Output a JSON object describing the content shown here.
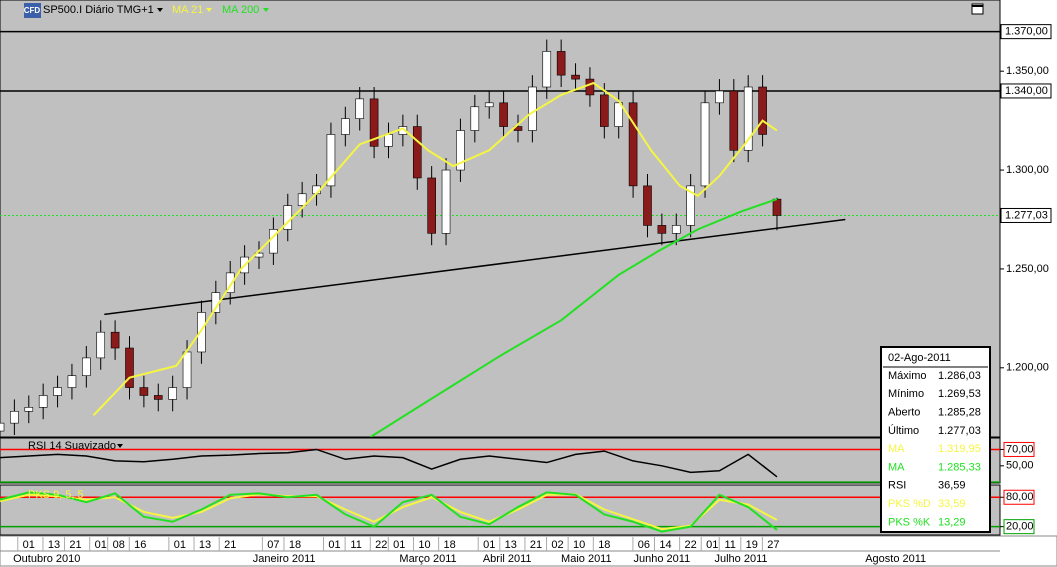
{
  "toolbar": {
    "icon": "CFD"
  },
  "chart_data": [
    {
      "type": "candlestick",
      "title": "SP500.I Diário TMG+1",
      "x": [
        0,
        4,
        8,
        12,
        16,
        20,
        24,
        28,
        32,
        36,
        40,
        44,
        48,
        52,
        56,
        60,
        64,
        68,
        72,
        76,
        80,
        84,
        88,
        92,
        96,
        100,
        104,
        108,
        112,
        116,
        120,
        124,
        128,
        132,
        136,
        140,
        144,
        148,
        152,
        156,
        160,
        164,
        168,
        172,
        176,
        180,
        184,
        188,
        192,
        196,
        200,
        204,
        208,
        212,
        216
      ],
      "open": [
        1168,
        1172,
        1178,
        1180,
        1186,
        1190,
        1196,
        1205,
        1218,
        1210,
        1190,
        1186,
        1184,
        1190,
        1208,
        1228,
        1238,
        1248,
        1256,
        1258,
        1270,
        1282,
        1288,
        1292,
        1318,
        1326,
        1336,
        1312,
        1318,
        1322,
        1296,
        1268,
        1300,
        1320,
        1332,
        1334,
        1322,
        1320,
        1342,
        1360,
        1348,
        1346,
        1338,
        1322,
        1334,
        1292,
        1272,
        1268,
        1272,
        1292,
        1334,
        1340,
        1310,
        1342,
        1285.28
      ],
      "high": [
        1178,
        1184,
        1186,
        1192,
        1196,
        1202,
        1211,
        1224,
        1224,
        1216,
        1196,
        1192,
        1196,
        1214,
        1234,
        1244,
        1254,
        1262,
        1264,
        1276,
        1288,
        1294,
        1298,
        1324,
        1332,
        1342,
        1342,
        1324,
        1328,
        1328,
        1302,
        1306,
        1326,
        1338,
        1340,
        1340,
        1328,
        1348,
        1366,
        1366,
        1354,
        1352,
        1344,
        1340,
        1340,
        1298,
        1278,
        1278,
        1298,
        1340,
        1346,
        1346,
        1348,
        1348,
        1286.03
      ],
      "low": [
        1162,
        1166,
        1172,
        1174,
        1180,
        1184,
        1190,
        1199,
        1204,
        1184,
        1180,
        1178,
        1178,
        1184,
        1202,
        1222,
        1232,
        1242,
        1250,
        1252,
        1264,
        1276,
        1282,
        1286,
        1312,
        1320,
        1306,
        1306,
        1312,
        1290,
        1262,
        1262,
        1294,
        1314,
        1326,
        1316,
        1314,
        1314,
        1336,
        1342,
        1340,
        1332,
        1316,
        1316,
        1286,
        1266,
        1262,
        1262,
        1266,
        1286,
        1328,
        1304,
        1304,
        1312,
        1269.53
      ],
      "close": [
        1172,
        1178,
        1180,
        1186,
        1190,
        1196,
        1205,
        1218,
        1210,
        1190,
        1186,
        1184,
        1190,
        1208,
        1228,
        1238,
        1248,
        1256,
        1258,
        1270,
        1282,
        1288,
        1292,
        1318,
        1326,
        1336,
        1312,
        1318,
        1322,
        1296,
        1268,
        1300,
        1320,
        1332,
        1334,
        1322,
        1320,
        1342,
        1360,
        1348,
        1346,
        1338,
        1322,
        1334,
        1292,
        1272,
        1268,
        1272,
        1292,
        1334,
        1340,
        1310,
        1342,
        1318,
        1277.03
      ],
      "up_color": "#ffffff",
      "down_color": "#8b1a1a",
      "series": [
        {
          "name": "MA 21",
          "color": "#f5f542",
          "x": [
            26,
            36,
            49,
            56,
            67,
            78,
            89,
            100,
            112,
            119,
            126,
            136,
            147,
            156,
            165,
            172,
            181,
            189,
            194,
            200,
            207,
            212,
            216
          ],
          "values": [
            1176,
            1195,
            1201,
            1219,
            1250,
            1270,
            1290,
            1313,
            1321,
            1310,
            1302,
            1310,
            1328,
            1338,
            1344,
            1335,
            1310,
            1292,
            1287,
            1297,
            1313,
            1325,
            1319.95
          ]
        },
        {
          "name": "MA 200",
          "color": "#22e022",
          "x": [
            103,
            117,
            139,
            156,
            172,
            183,
            194,
            206,
            216
          ],
          "values": [
            1165,
            1181,
            1206,
            1224,
            1247,
            1259,
            1270,
            1279,
            1285.33
          ]
        }
      ],
      "hlines": [
        {
          "value": 1370,
          "label": "1.370,00"
        },
        {
          "value": 1340,
          "label": "1.340,00"
        }
      ],
      "last_price": {
        "value": 1277.03,
        "label": "1.277,03"
      },
      "trendline": {
        "x": [
          29,
          235
        ],
        "values": [
          1227,
          1275
        ]
      },
      "ylim": [
        1165,
        1386
      ],
      "yticks": [
        {
          "value": 1200,
          "label": "1.200,00"
        },
        {
          "value": 1250,
          "label": "1.250,00"
        },
        {
          "value": 1300,
          "label": "1.300,00"
        },
        {
          "value": 1350,
          "label": "1.350,00"
        }
      ],
      "xlim": [
        0,
        278
      ],
      "xticks": [
        {
          "value": 8,
          "label": "01"
        },
        {
          "value": 15,
          "label": "13"
        },
        {
          "value": 21,
          "label": "21"
        },
        {
          "value": 28,
          "label": "01"
        },
        {
          "value": 33,
          "label": "08"
        },
        {
          "value": 39,
          "label": "16"
        },
        {
          "value": 50,
          "label": "01"
        },
        {
          "value": 57,
          "label": "13"
        },
        {
          "value": 64,
          "label": "21"
        },
        {
          "value": 76,
          "label": "07"
        },
        {
          "value": 82,
          "label": "18"
        },
        {
          "value": 93,
          "label": "01"
        },
        {
          "value": 99,
          "label": "11"
        },
        {
          "value": 106,
          "label": "22"
        },
        {
          "value": 111,
          "label": "01"
        },
        {
          "value": 118,
          "label": "10"
        },
        {
          "value": 125,
          "label": "18"
        },
        {
          "value": 136,
          "label": "01"
        },
        {
          "value": 142,
          "label": "13"
        },
        {
          "value": 149,
          "label": "21"
        },
        {
          "value": 155,
          "label": "02"
        },
        {
          "value": 161,
          "label": "10"
        },
        {
          "value": 168,
          "label": "18"
        },
        {
          "value": 179,
          "label": "06"
        },
        {
          "value": 185,
          "label": "14"
        },
        {
          "value": 192,
          "label": "22"
        },
        {
          "value": 198,
          "label": "01"
        },
        {
          "value": 203,
          "label": "11"
        },
        {
          "value": 209,
          "label": "19"
        },
        {
          "value": 215,
          "label": "27"
        }
      ],
      "month_labels": [
        {
          "value": 13,
          "label": "Outubro 2010"
        },
        {
          "value": 79,
          "label": "Janeiro 2011"
        },
        {
          "value": 119,
          "label": "Março 2011"
        },
        {
          "value": 141,
          "label": "Abril 2011"
        },
        {
          "value": 163,
          "label": "Maio 2011"
        },
        {
          "value": 184,
          "label": "Junho 2011"
        },
        {
          "value": 206,
          "label": "Julho 2011"
        },
        {
          "value": 249,
          "label": "Agosto 2011"
        }
      ]
    },
    {
      "type": "line",
      "series": [
        {
          "name": "RSI 14 Suavizado",
          "color": "#000000",
          "x": [
            0,
            8,
            16,
            24,
            32,
            40,
            48,
            56,
            64,
            72,
            80,
            88,
            96,
            104,
            112,
            120,
            128,
            136,
            144,
            152,
            160,
            168,
            176,
            184,
            192,
            200,
            208,
            216
          ],
          "values": [
            60,
            62,
            64,
            62,
            56,
            55,
            58,
            62,
            63,
            65,
            66,
            70,
            58,
            62,
            60,
            46,
            58,
            62,
            58,
            54,
            64,
            68,
            56,
            50,
            42,
            44,
            64,
            36.59
          ]
        }
      ],
      "ylim": [
        29,
        84
      ],
      "yticks": [
        {
          "value": 50,
          "label": "50,00"
        },
        {
          "value": 70,
          "label": "70,00"
        }
      ],
      "levels": [
        {
          "value": 70,
          "color": "#ff0000"
        },
        {
          "value": 30,
          "color": "#00a000"
        }
      ]
    },
    {
      "type": "line",
      "title": "PKS 9, 5, 5",
      "series": [
        {
          "color": "#f5f542",
          "x": [
            0,
            8,
            16,
            24,
            32,
            40,
            48,
            56,
            64,
            72,
            80,
            88,
            96,
            104,
            112,
            120,
            128,
            136,
            144,
            152,
            160,
            168,
            176,
            184,
            192,
            200,
            208,
            216
          ],
          "values": [
            72,
            85,
            82,
            75,
            80,
            50,
            38,
            50,
            78,
            86,
            82,
            82,
            55,
            30,
            60,
            80,
            50,
            30,
            55,
            85,
            86,
            55,
            35,
            15,
            22,
            75,
            65,
            33.59
          ]
        },
        {
          "color": "#22e022",
          "x": [
            0,
            8,
            16,
            24,
            32,
            40,
            48,
            56,
            64,
            72,
            80,
            88,
            96,
            104,
            112,
            120,
            128,
            136,
            144,
            152,
            160,
            168,
            176,
            184,
            192,
            200,
            208,
            216
          ],
          "values": [
            75,
            90,
            85,
            70,
            88,
            40,
            30,
            55,
            85,
            88,
            80,
            85,
            45,
            20,
            70,
            85,
            40,
            25,
            60,
            90,
            85,
            45,
            30,
            10,
            20,
            85,
            60,
            13.29
          ]
        }
      ],
      "ylim": [
        3,
        105
      ],
      "yticks": [
        {
          "value": 20,
          "label": "20,00"
        },
        {
          "value": 80,
          "label": "80,00"
        }
      ],
      "levels": [
        {
          "value": 80,
          "color": "#ff0000"
        },
        {
          "value": 20,
          "color": "#00a000"
        }
      ]
    }
  ],
  "info_box": {
    "date": "02-Ago-2011",
    "rows": [
      {
        "label": "Máximo",
        "value": "1.286,03"
      },
      {
        "label": "Mínimo",
        "value": "1.269,53"
      },
      {
        "label": "Aberto",
        "value": "1.285,28"
      },
      {
        "label": "Último",
        "value": "1.277,03"
      },
      {
        "label": "MA",
        "value": "1.319,95",
        "color": "#f5f542"
      },
      {
        "label": "MA",
        "value": "1.285,33",
        "color": "#22e022"
      },
      {
        "label": "RSI",
        "value": "36,59"
      },
      {
        "label": "PKS %D",
        "value": "33,59",
        "color": "#f5f542"
      },
      {
        "label": "PKS %K",
        "value": "13,29",
        "color": "#22e022"
      }
    ]
  }
}
